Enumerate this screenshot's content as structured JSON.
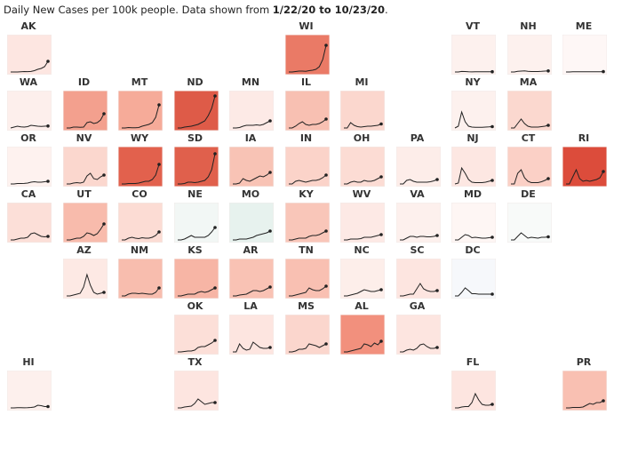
{
  "header": {
    "prefix": "Daily New Cases per 100k people. Data shown from ",
    "start": "1/22/20",
    "mid": " to ",
    "end": "10/23/20",
    "suffix": "."
  },
  "chart_data": {
    "type": "line",
    "subtype": "small-multiples tile grid map",
    "title": "Daily New Cases per 100k people. Data shown from 1/22/20 to 10/23/20.",
    "x_range": [
      "1/22/20",
      "10/23/20"
    ],
    "line_color": "#222222",
    "states": [
      {
        "label": "AK",
        "row": 0,
        "col": 0,
        "color": "#fde6e1",
        "values": [
          0,
          0,
          0,
          0.3,
          0.5,
          0.4,
          0.6,
          1.5,
          3,
          4,
          6,
          12
        ]
      },
      {
        "label": "WI",
        "row": 0,
        "col": 5,
        "color": "#ea7a66",
        "values": [
          0,
          0,
          0.5,
          1,
          1,
          0.8,
          1.5,
          2,
          3,
          6,
          14,
          30
        ]
      },
      {
        "label": "VT",
        "row": 0,
        "col": 8,
        "color": "#fdf1ee",
        "values": [
          0,
          0,
          0.6,
          0.5,
          0.2,
          0.1,
          0.2,
          0.2,
          0.2,
          0.2,
          0.3,
          0.3
        ]
      },
      {
        "label": "NH",
        "row": 0,
        "col": 9,
        "color": "#fdf1ee",
        "values": [
          0,
          0,
          0.8,
          1,
          1.2,
          0.8,
          0.5,
          0.5,
          0.5,
          0.7,
          1,
          1.2
        ]
      },
      {
        "label": "ME",
        "row": 0,
        "col": 10,
        "color": "#fef7f6",
        "values": [
          0,
          0,
          0.3,
          0.3,
          0.3,
          0.2,
          0.2,
          0.2,
          0.2,
          0.2,
          0.3,
          0.4
        ]
      },
      {
        "label": "WA",
        "row": 1,
        "col": 0,
        "color": "#fdefec",
        "values": [
          0,
          1,
          2,
          1.2,
          1,
          1.5,
          3,
          2.5,
          2,
          1.8,
          2,
          2.2
        ]
      },
      {
        "label": "ID",
        "row": 1,
        "col": 1,
        "color": "#f3a08e",
        "values": [
          0,
          0,
          1,
          1,
          0.8,
          1,
          6,
          7,
          5,
          6,
          9,
          16
        ]
      },
      {
        "label": "MT",
        "row": 1,
        "col": 2,
        "color": "#f6ab99",
        "values": [
          0,
          0,
          0.5,
          0.2,
          0.2,
          0.5,
          2,
          3,
          4,
          6,
          12,
          26
        ]
      },
      {
        "label": "ND",
        "row": 1,
        "col": 3,
        "color": "#de5b48",
        "values": [
          0,
          0,
          1,
          1.5,
          2,
          3,
          4,
          6,
          8,
          14,
          22,
          36
        ]
      },
      {
        "label": "MN",
        "row": 1,
        "col": 4,
        "color": "#fdeae6",
        "values": [
          0,
          0,
          0.5,
          2,
          3,
          3,
          3,
          3.5,
          3,
          4,
          6,
          8
        ]
      },
      {
        "label": "IL",
        "row": 1,
        "col": 5,
        "color": "#f8c0b2",
        "values": [
          0,
          0,
          2,
          5,
          7,
          4,
          3,
          4,
          4,
          5,
          7,
          10
        ]
      },
      {
        "label": "MI",
        "row": 1,
        "col": 6,
        "color": "#fbd7ce",
        "values": [
          0,
          0,
          6,
          3,
          1.5,
          1,
          1.5,
          2,
          2,
          2.5,
          3,
          4.5
        ]
      },
      {
        "label": "NY",
        "row": 1,
        "col": 8,
        "color": "#fdf1ee",
        "values": [
          0,
          2,
          18,
          7,
          2,
          1,
          0.8,
          0.8,
          0.8,
          1,
          1.2,
          1.5
        ]
      },
      {
        "label": "MA",
        "row": 1,
        "col": 9,
        "color": "#fbd8cf",
        "values": [
          0,
          0,
          5,
          10,
          5,
          2,
          1,
          1,
          1,
          1.5,
          2,
          3
        ]
      },
      {
        "label": "OR",
        "row": 2,
        "col": 0,
        "color": "#fef2ef",
        "values": [
          0,
          0,
          0.5,
          0.5,
          0.6,
          1,
          2,
          2.5,
          2,
          2,
          2.5,
          3
        ]
      },
      {
        "label": "NV",
        "row": 2,
        "col": 1,
        "color": "#fbd7ce",
        "values": [
          0,
          0,
          1,
          1.5,
          1,
          2,
          9,
          12,
          6,
          5,
          8,
          10
        ]
      },
      {
        "label": "WY",
        "row": 2,
        "col": 2,
        "color": "#e2614d",
        "values": [
          0,
          0,
          0.5,
          0.5,
          0.5,
          1,
          2,
          3,
          3,
          5,
          10,
          22
        ]
      },
      {
        "label": "SD",
        "row": 2,
        "col": 3,
        "color": "#e0604c",
        "values": [
          0,
          0,
          0.5,
          2,
          2,
          1.5,
          2,
          3,
          4,
          8,
          16,
          34
        ]
      },
      {
        "label": "IA",
        "row": 2,
        "col": 4,
        "color": "#f8c3b5",
        "values": [
          0,
          0,
          1,
          6,
          4,
          3,
          5,
          7,
          9,
          8,
          10,
          13
        ]
      },
      {
        "label": "IN",
        "row": 2,
        "col": 5,
        "color": "#fbd3c9",
        "values": [
          0,
          0,
          3,
          4,
          3,
          2,
          3,
          4,
          4,
          5,
          7,
          10
        ]
      },
      {
        "label": "OH",
        "row": 2,
        "col": 6,
        "color": "#fcdcd4",
        "values": [
          0,
          0,
          2,
          3,
          2,
          2,
          4,
          3,
          3,
          4,
          6,
          8
        ]
      },
      {
        "label": "PA",
        "row": 2,
        "col": 7,
        "color": "#fdede9",
        "values": [
          0,
          0,
          4,
          5,
          3,
          2,
          2,
          2,
          2,
          2.5,
          3.5,
          5
        ]
      },
      {
        "label": "NJ",
        "row": 2,
        "col": 8,
        "color": "#fde7e2",
        "values": [
          0,
          1,
          18,
          12,
          5,
          2,
          1.5,
          1.5,
          1.5,
          2,
          3,
          4
        ]
      },
      {
        "label": "CT",
        "row": 2,
        "col": 9,
        "color": "#fbd0c6",
        "values": [
          0,
          0,
          12,
          16,
          7,
          3,
          1.5,
          1.5,
          1.5,
          2.5,
          4,
          6
        ]
      },
      {
        "label": "RI",
        "row": 2,
        "col": 10,
        "color": "#dc4c3b",
        "values": [
          0,
          0,
          8,
          16,
          6,
          3,
          4,
          3,
          4,
          5,
          7,
          14
        ]
      },
      {
        "label": "CA",
        "row": 3,
        "col": 0,
        "color": "#fcdfd8",
        "values": [
          0,
          0,
          1,
          2,
          2,
          3,
          7,
          8,
          6,
          4,
          3.5,
          4
        ]
      },
      {
        "label": "UT",
        "row": 3,
        "col": 1,
        "color": "#f8bbac",
        "values": [
          0,
          0,
          1,
          2,
          2,
          4,
          8,
          7,
          5,
          7,
          12,
          18
        ]
      },
      {
        "label": "CO",
        "row": 3,
        "col": 2,
        "color": "#fcdcd4",
        "values": [
          0,
          0,
          2,
          3,
          2,
          1.5,
          2.5,
          2,
          2,
          3,
          5,
          9
        ]
      },
      {
        "label": "NE",
        "row": 3,
        "col": 3,
        "color": "#f2f7f5",
        "values": [
          0,
          0,
          1,
          3,
          5,
          3,
          3,
          3,
          3,
          5,
          9,
          14
        ]
      },
      {
        "label": "MO",
        "row": 3,
        "col": 4,
        "color": "#e7f2ee",
        "values": [
          0,
          0,
          1,
          1,
          1,
          2,
          3,
          5,
          6,
          7,
          8,
          10
        ]
      },
      {
        "label": "KY",
        "row": 3,
        "col": 5,
        "color": "#f9c6b9",
        "values": [
          0,
          0,
          1,
          2,
          2,
          2,
          4,
          5,
          5,
          6,
          8,
          10
        ]
      },
      {
        "label": "WV",
        "row": 3,
        "col": 6,
        "color": "#fde9e5",
        "values": [
          0,
          0,
          1,
          1,
          1,
          1.5,
          3,
          3,
          3,
          4,
          5,
          6
        ]
      },
      {
        "label": "VA",
        "row": 3,
        "col": 7,
        "color": "#fdf0ed",
        "values": [
          0,
          0,
          2,
          4,
          4,
          3,
          4,
          4,
          3.5,
          3.5,
          4,
          5
        ]
      },
      {
        "label": "MD",
        "row": 3,
        "col": 8,
        "color": "#fef6f4",
        "values": [
          0,
          0,
          3,
          6,
          5,
          2.5,
          3,
          2.5,
          2,
          2,
          2.5,
          3
        ]
      },
      {
        "label": "DE",
        "row": 3,
        "col": 9,
        "color": "#f8faf9",
        "values": [
          0,
          0,
          4,
          8,
          5,
          2,
          3,
          2.5,
          2,
          3,
          3,
          3.5
        ]
      },
      {
        "label": "AZ",
        "row": 4,
        "col": 1,
        "color": "#fde9e4",
        "values": [
          0,
          0,
          1,
          2,
          3,
          10,
          24,
          12,
          4,
          2,
          3,
          4
        ]
      },
      {
        "label": "NM",
        "row": 4,
        "col": 2,
        "color": "#f8bdae",
        "values": [
          0,
          0,
          2,
          3,
          3,
          2.5,
          3,
          2.5,
          2,
          2,
          4,
          9
        ]
      },
      {
        "label": "KS",
        "row": 4,
        "col": 3,
        "color": "#f7b5a5",
        "values": [
          0,
          0,
          1,
          2,
          2,
          2,
          4,
          5,
          4,
          5,
          7,
          9
        ]
      },
      {
        "label": "AR",
        "row": 4,
        "col": 4,
        "color": "#f9c2b4",
        "values": [
          0,
          0,
          1,
          1.5,
          2,
          4,
          6,
          6,
          5,
          6,
          8,
          10
        ]
      },
      {
        "label": "TN",
        "row": 4,
        "col": 5,
        "color": "#f9c0b2",
        "values": [
          0,
          0,
          1,
          2,
          3,
          4,
          9,
          7,
          6,
          6,
          8,
          11
        ]
      },
      {
        "label": "NC",
        "row": 4,
        "col": 6,
        "color": "#fdeeea",
        "values": [
          0,
          0,
          1,
          2,
          3,
          5,
          7,
          6,
          5,
          5,
          6,
          7
        ]
      },
      {
        "label": "SC",
        "row": 4,
        "col": 7,
        "color": "#fde5e0",
        "values": [
          0,
          0,
          1,
          2,
          2,
          8,
          14,
          8,
          6,
          5,
          5,
          6
        ]
      },
      {
        "label": "DC",
        "row": 4,
        "col": 8,
        "color": "#f6f8fb",
        "values": [
          0,
          0,
          4,
          9,
          6,
          2.5,
          2.5,
          2,
          2,
          2,
          2,
          2
        ]
      },
      {
        "label": "OK",
        "row": 5,
        "col": 3,
        "color": "#fcdfd8",
        "values": [
          0,
          0,
          0.5,
          1,
          1,
          2,
          5,
          6,
          6,
          8,
          10,
          13
        ]
      },
      {
        "label": "LA",
        "row": 5,
        "col": 4,
        "color": "#fde5e0",
        "values": [
          0,
          0,
          9,
          4,
          2,
          3,
          11,
          8,
          5,
          4,
          4,
          5
        ]
      },
      {
        "label": "MS",
        "row": 5,
        "col": 5,
        "color": "#fbd6cd",
        "values": [
          0,
          0,
          1,
          3,
          3,
          4,
          9,
          8,
          7,
          5,
          7,
          9
        ]
      },
      {
        "label": "AL",
        "row": 5,
        "col": 6,
        "color": "#f2907d",
        "values": [
          0,
          0,
          1,
          2,
          3,
          4,
          9,
          8,
          6,
          10,
          8,
          12
        ]
      },
      {
        "label": "GA",
        "row": 5,
        "col": 7,
        "color": "#fde5e0",
        "values": [
          0,
          0,
          2,
          3,
          2,
          4,
          8,
          9,
          6,
          4,
          4,
          5
        ]
      },
      {
        "label": "HI",
        "row": 6,
        "col": 0,
        "color": "#fdf0ed",
        "values": [
          0,
          0,
          0.3,
          0.2,
          0.1,
          0.2,
          0.5,
          1,
          3,
          2.5,
          1.5,
          1.5
        ]
      },
      {
        "label": "TX",
        "row": 6,
        "col": 3,
        "color": "#fde5e0",
        "values": [
          0,
          0,
          1,
          1.5,
          2,
          5,
          10,
          7,
          4,
          5,
          6,
          6
        ]
      },
      {
        "label": "FL",
        "row": 6,
        "col": 8,
        "color": "#fde5e0",
        "values": [
          0,
          0,
          1,
          1.5,
          1.5,
          6,
          16,
          9,
          4,
          3,
          3,
          4
        ]
      },
      {
        "label": "PR",
        "row": 6,
        "col": 10,
        "color": "#f9c0b2",
        "values": [
          0,
          0,
          0.5,
          0.5,
          0.5,
          1,
          3,
          5,
          4,
          6,
          6,
          8
        ]
      }
    ]
  }
}
